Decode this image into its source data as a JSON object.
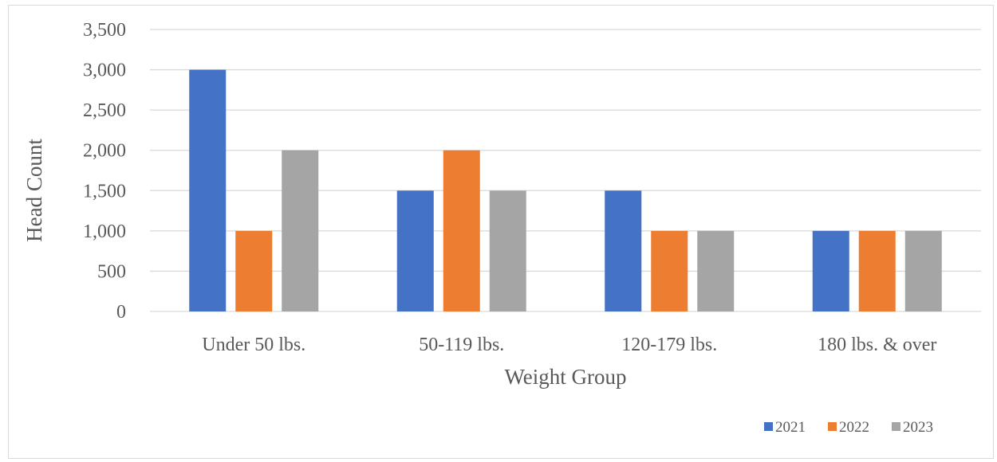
{
  "chart_data": {
    "type": "bar",
    "categories": [
      "Under 50 lbs.",
      "50-119 lbs.",
      "120-179 lbs.",
      "180 lbs. & over"
    ],
    "series": [
      {
        "name": "2021",
        "values": [
          3000,
          1500,
          1500,
          1000
        ],
        "color": "#4472c4"
      },
      {
        "name": "2022",
        "values": [
          1000,
          2000,
          1000,
          1000
        ],
        "color": "#ed7d31"
      },
      {
        "name": "2023",
        "values": [
          2000,
          1500,
          1000,
          1000
        ],
        "color": "#a5a5a5"
      }
    ],
    "title": "",
    "xlabel": "Weight Group",
    "ylabel": "Head Count",
    "ylim": [
      0,
      3500
    ],
    "yticks": [
      0,
      500,
      1000,
      1500,
      2000,
      2500,
      3000,
      3500
    ],
    "ytick_labels": [
      "0",
      "500",
      "1,000",
      "1,500",
      "2,000",
      "2,500",
      "3,000",
      "3,500"
    ],
    "grid": true,
    "legend_position": "bottom-right",
    "gridline_color": "#d9d9d9",
    "text_color": "#595959"
  }
}
